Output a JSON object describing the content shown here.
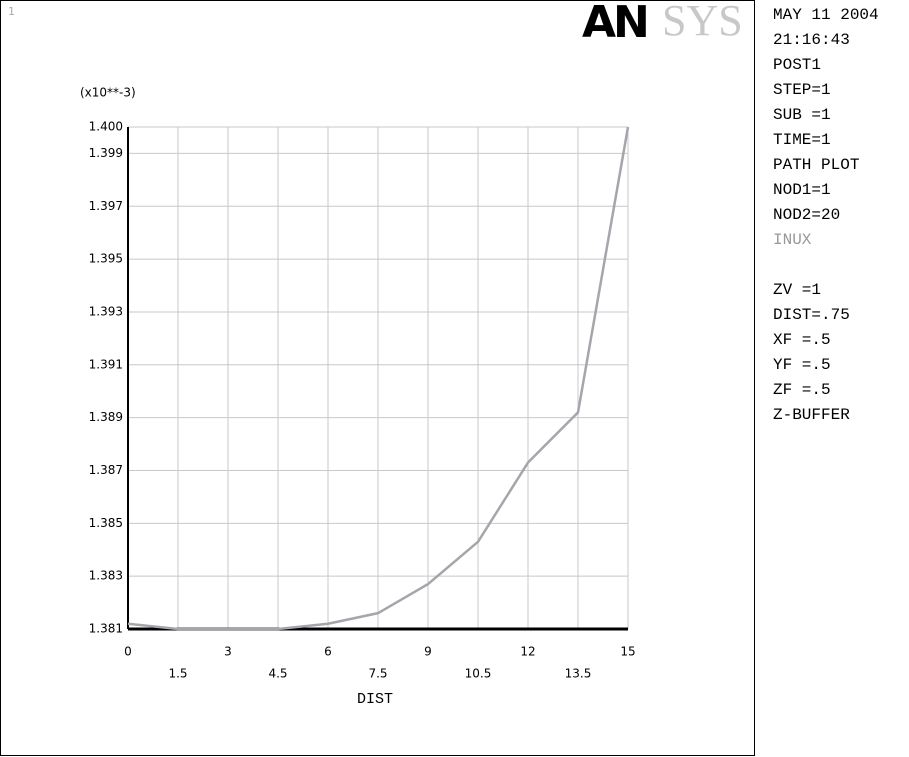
{
  "window_number": "1",
  "logo": {
    "bold": "AN",
    "light": "SYS"
  },
  "info_panel": [
    "MAY 11 2004",
    "21:16:43",
    "POST1",
    "STEP=1",
    "SUB =1",
    "TIME=1",
    "PATH PLOT",
    "NOD1=1",
    "NOD2=20"
  ],
  "path_item": "INUX",
  "view_panel": [
    "ZV  =1",
    "DIST=.75",
    "XF  =.5",
    "YF  =.5",
    "ZF  =.5",
    "Z-BUFFER"
  ],
  "chart_data": {
    "type": "line",
    "y_label": "(x10**-3)",
    "x_label": "DIST",
    "x": [
      0,
      1.5,
      3,
      4.5,
      6,
      7.5,
      9,
      10.5,
      12,
      13.5,
      15
    ],
    "series": [
      {
        "name": "INUX",
        "color": "#a8a4ac",
        "values": [
          1.3812,
          1.381,
          1.381,
          1.381,
          1.3812,
          1.3816,
          1.3827,
          1.3843,
          1.3873,
          1.3892,
          1.4
        ]
      }
    ],
    "xlim": [
      0,
      15
    ],
    "xticks": [
      0,
      1.5,
      3,
      4.5,
      6,
      7.5,
      9,
      10.5,
      12,
      13.5,
      15
    ],
    "ylim": [
      1.381,
      1.4
    ],
    "yticks": [
      1.381,
      1.383,
      1.385,
      1.387,
      1.389,
      1.391,
      1.393,
      1.395,
      1.397,
      1.399,
      {
        "value": 1.4,
        "label": "1.400"
      }
    ],
    "grid": true
  }
}
